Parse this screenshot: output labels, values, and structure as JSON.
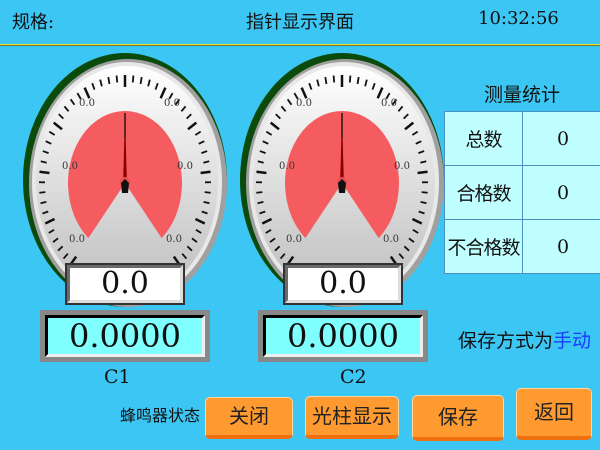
{
  "header": {
    "spec_label": "规格:",
    "title": "指针显示界面",
    "time": "10:32:56"
  },
  "gauges": [
    {
      "name": "C1",
      "value_display": "0.0",
      "reading": "0.0000",
      "scale_labels": [
        "0.0",
        "0.0",
        "0.0",
        "0.0",
        "0.0",
        "0.0"
      ],
      "needle_value": 0
    },
    {
      "name": "C2",
      "value_display": "0.0",
      "reading": "0.0000",
      "scale_labels": [
        "0.0",
        "0.0",
        "0.0",
        "0.0",
        "0.0",
        "0.0"
      ],
      "needle_value": 0
    }
  ],
  "stats": {
    "title": "测量统计",
    "rows": [
      {
        "label": "总数",
        "value": "0"
      },
      {
        "label": "合格数",
        "value": "0"
      },
      {
        "label": "不合格数",
        "value": "0"
      }
    ]
  },
  "save_mode": {
    "prefix": "保存方式为",
    "mode": "手动"
  },
  "buzzer_label": "蜂鸣器状态",
  "buttons": {
    "close": "关闭",
    "bar_display": "光柱显示",
    "save": "保存",
    "back": "返回"
  },
  "colors": {
    "background": "#3cc6f4",
    "sector": "#f45c60",
    "button": "#ff9a30",
    "lcd": "#80ffff"
  }
}
